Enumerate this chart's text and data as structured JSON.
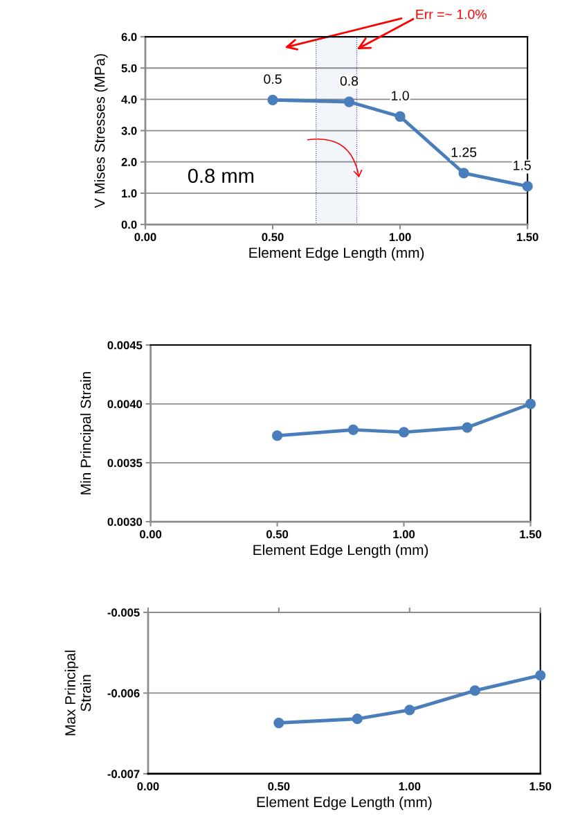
{
  "chart_data": [
    {
      "type": "line",
      "xlabel": "Element Edge Length (mm)",
      "ylabel": "V Mises Stresses (MPa)",
      "x": [
        0.5,
        0.8,
        1.0,
        1.25,
        1.5
      ],
      "series": [
        {
          "color": "#4a7ebb",
          "values": [
            3.98,
            3.92,
            3.45,
            1.64,
            1.22
          ]
        }
      ],
      "xlim": [
        0,
        1.5
      ],
      "xticks": [
        {
          "value": 0,
          "label": "0.00"
        },
        {
          "value": 0.5,
          "label": "0.50"
        },
        {
          "value": 1.0,
          "label": "1.00"
        },
        {
          "value": 1.5,
          "label": "1.50"
        }
      ],
      "ylim": [
        0,
        6
      ],
      "yticks": [
        {
          "value": 0,
          "label": "0.0"
        },
        {
          "value": 1,
          "label": "1.0"
        },
        {
          "value": 2,
          "label": "2.0"
        },
        {
          "value": 3,
          "label": "3.0"
        },
        {
          "value": 4,
          "label": "4.0"
        },
        {
          "value": 5,
          "label": "5.0"
        },
        {
          "value": 6,
          "label": "6.0"
        }
      ],
      "grid": "y",
      "marker": "circle",
      "line_style": "solid",
      "bands": [
        {
          "axis": "x",
          "from": 0.67,
          "to": 0.83,
          "color": "#1f4e99"
        }
      ],
      "annotations": [
        {
          "text": "0.5",
          "x": 0.5,
          "y": 3.98
        },
        {
          "text": "0.8",
          "x": 0.8,
          "y": 3.92
        },
        {
          "text": "1.0",
          "x": 1.0,
          "y": 3.45
        },
        {
          "text": "1.25",
          "x": 1.25,
          "y": 1.64
        },
        {
          "text": "1.5",
          "x": 1.5,
          "y": 1.22
        },
        "0.8 mm",
        {
          "text": "Err =~ 1.0%",
          "x": 0.83,
          "y": 5.6
        }
      ]
    },
    {
      "type": "line",
      "xlabel": "Element Edge Length (mm)",
      "ylabel": "Min Principal Strain",
      "x": [
        0.5,
        0.8,
        1.0,
        1.25,
        1.5
      ],
      "series": [
        {
          "color": "#4a7ebb",
          "values": [
            0.00373,
            0.00378,
            0.00376,
            0.0038,
            0.004
          ]
        }
      ],
      "xlim": [
        0,
        1.5
      ],
      "xticks": [
        {
          "value": 0,
          "label": "0.00"
        },
        {
          "value": 0.5,
          "label": "0.50"
        },
        {
          "value": 1.0,
          "label": "1.00"
        },
        {
          "value": 1.5,
          "label": "1.50"
        }
      ],
      "ylim": [
        0.003,
        0.0045
      ],
      "yticks": [
        {
          "value": 0.003,
          "label": "0.0030"
        },
        {
          "value": 0.0035,
          "label": "0.0035"
        },
        {
          "value": 0.004,
          "label": "0.0040"
        },
        {
          "value": 0.0045,
          "label": "0.0045"
        }
      ],
      "grid": "y",
      "marker": "circle",
      "line_style": "solid"
    },
    {
      "type": "line",
      "xlabel": "Element Edge Length (mm)",
      "ylabel": "Max Principal\nStrain",
      "x": [
        0.5,
        0.8,
        1.0,
        1.25,
        1.5
      ],
      "series": [
        {
          "color": "#4a7ebb",
          "values": [
            -0.00637,
            -0.00632,
            -0.00621,
            -0.00597,
            -0.00578
          ]
        }
      ],
      "xlim": [
        0,
        1.5
      ],
      "xticks": [
        {
          "value": 0,
          "label": "0.00"
        },
        {
          "value": 0.5,
          "label": "0.50"
        },
        {
          "value": 1.0,
          "label": "1.00"
        },
        {
          "value": 1.5,
          "label": "1.50"
        }
      ],
      "ylim": [
        -0.007,
        -0.005
      ],
      "yticks": [
        -0.007,
        -0.006,
        -0.005
      ],
      "grid": "y",
      "marker": "circle",
      "line_style": "solid"
    }
  ]
}
